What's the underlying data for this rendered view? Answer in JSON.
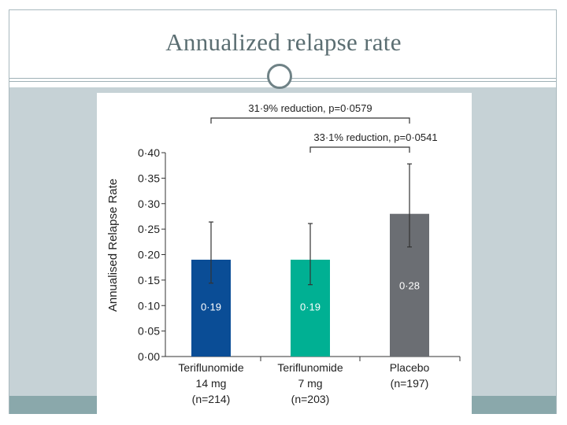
{
  "slide": {
    "title": "Annualized relapse rate"
  },
  "colors": {
    "frame": "#a9b9be",
    "content_band": "#c6d2d6",
    "footer_band": "#8aa8ab",
    "ring": "#6f8286"
  },
  "chart_data": {
    "type": "bar",
    "ylabel": "Annualised Relapse Rate",
    "ylim": [
      0,
      0.4
    ],
    "yticks": [
      {
        "value": 0.0,
        "label": "0·00"
      },
      {
        "value": 0.05,
        "label": "0·05"
      },
      {
        "value": 0.1,
        "label": "0·10"
      },
      {
        "value": 0.15,
        "label": "0·15"
      },
      {
        "value": 0.2,
        "label": "0·20"
      },
      {
        "value": 0.25,
        "label": "0·25"
      },
      {
        "value": 0.3,
        "label": "0·30"
      },
      {
        "value": 0.35,
        "label": "0·35"
      },
      {
        "value": 0.4,
        "label": "0·40"
      }
    ],
    "categories": [
      {
        "lines": [
          "Teriflunomide",
          "14 mg",
          "(n=214)"
        ]
      },
      {
        "lines": [
          "Teriflunomide",
          "7 mg",
          "(n=203)"
        ]
      },
      {
        "lines": [
          "Placebo",
          "(n=197)"
        ]
      }
    ],
    "values": [
      0.19,
      0.19,
      0.28
    ],
    "value_labels": [
      "0·19",
      "0·19",
      "0·28"
    ],
    "error_bars": [
      {
        "low": 0.144,
        "high": 0.264
      },
      {
        "low": 0.141,
        "high": 0.261
      },
      {
        "low": 0.215,
        "high": 0.378
      }
    ],
    "colors": [
      "#0a4d96",
      "#00b093",
      "#6b6e73"
    ],
    "annotations": [
      {
        "text": "31·9% reduction, p=0·0579",
        "from": 0,
        "to": 2,
        "level": 1
      },
      {
        "text": "33·1% reduction, p=0·0541",
        "from": 1,
        "to": 2,
        "level": 0
      }
    ]
  }
}
